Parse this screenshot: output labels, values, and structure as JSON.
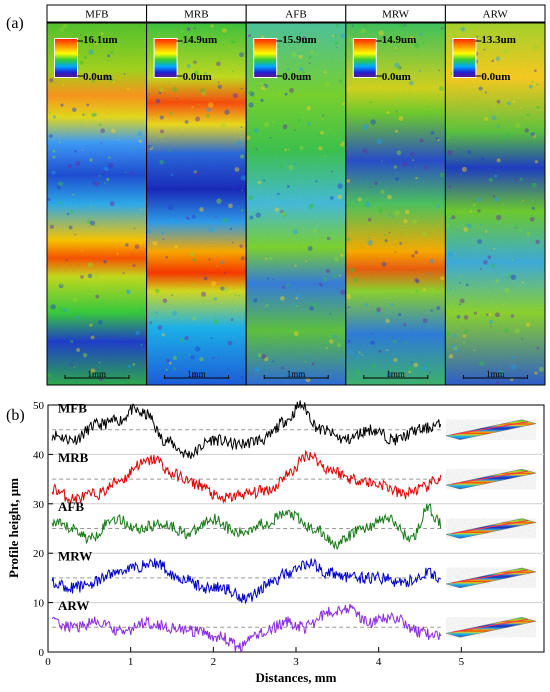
{
  "figure": {
    "label_a": "(a)",
    "label_b": "(b)"
  },
  "panels": [
    {
      "title": "MFB",
      "colorbar_max": "16.1um",
      "colorbar_min": "0.0um",
      "scale_bar": "1mm"
    },
    {
      "title": "MRB",
      "colorbar_max": "14.9um",
      "colorbar_min": "0.0um",
      "scale_bar": "1mm"
    },
    {
      "title": "AFB",
      "colorbar_max": "15.9um",
      "colorbar_min": "0.0um",
      "scale_bar": "1mm"
    },
    {
      "title": "MRW",
      "colorbar_max": "14.9um",
      "colorbar_min": "0.0um",
      "scale_bar": "1mm"
    },
    {
      "title": "ARW",
      "colorbar_max": "13.3um",
      "colorbar_min": "0.0um",
      "scale_bar": "1mm"
    }
  ],
  "chart_data": {
    "type": "line",
    "title": "",
    "xlabel": "Distances, mm",
    "ylabel": "Profile height, μm",
    "xlim": [
      0,
      6
    ],
    "ylim": [
      0,
      50
    ],
    "xticks": [
      "0",
      "1",
      "2",
      "3",
      "4",
      "5"
    ],
    "yticks": [
      "0",
      "10",
      "20",
      "30",
      "40",
      "50"
    ],
    "grid": "horizontal",
    "colors": {
      "MFB": "#000000",
      "MRB": "#e00000",
      "AFB": "#1a7a1a",
      "MRW": "#0000cc",
      "ARW": "#8a2be2",
      "reference": "#999999"
    },
    "series": [
      {
        "name": "MFB",
        "color": "#000000",
        "reference": 45,
        "x": [
          0.05,
          0.3,
          0.6,
          0.9,
          1.0,
          1.2,
          1.4,
          1.7,
          2.0,
          2.3,
          2.6,
          2.9,
          3.05,
          3.3,
          3.6,
          3.9,
          4.2,
          4.5,
          4.75
        ],
        "y": [
          44,
          43,
          46,
          47,
          49,
          48,
          43,
          40,
          43,
          42,
          43,
          47,
          50,
          45,
          43,
          45,
          43,
          45,
          46
        ]
      },
      {
        "name": "MRB",
        "color": "#e00000",
        "reference": 35,
        "x": [
          0.05,
          0.3,
          0.6,
          0.9,
          1.1,
          1.3,
          1.5,
          1.8,
          2.1,
          2.4,
          2.7,
          2.9,
          3.15,
          3.4,
          3.7,
          4.0,
          4.3,
          4.5,
          4.75
        ],
        "y": [
          33,
          31,
          32,
          35,
          38,
          39,
          36,
          34,
          31,
          32,
          33,
          36,
          40,
          37,
          35,
          34,
          32,
          33,
          35
        ]
      },
      {
        "name": "AFB",
        "color": "#1a7a1a",
        "reference": 25,
        "x": [
          0.05,
          0.3,
          0.5,
          0.8,
          1.1,
          1.4,
          1.7,
          2.0,
          2.3,
          2.6,
          2.9,
          3.2,
          3.5,
          3.8,
          4.1,
          4.4,
          4.6,
          4.75
        ],
        "y": [
          26,
          25,
          23,
          27,
          25,
          26,
          24,
          27,
          24,
          26,
          28,
          25,
          22,
          25,
          27,
          23,
          29,
          26
        ]
      },
      {
        "name": "MRW",
        "color": "#0000cc",
        "reference": 15,
        "x": [
          0.05,
          0.3,
          0.55,
          0.8,
          1.0,
          1.3,
          1.6,
          1.9,
          2.1,
          2.4,
          2.7,
          2.9,
          3.15,
          3.4,
          3.7,
          4.0,
          4.3,
          4.6,
          4.75
        ],
        "y": [
          14,
          13,
          14,
          16,
          17,
          18,
          15,
          13,
          13,
          11,
          14,
          16,
          18,
          16,
          15,
          15,
          14,
          16,
          15
        ]
      },
      {
        "name": "ARW",
        "color": "#8a2be2",
        "reference": 5,
        "x": [
          0.05,
          0.3,
          0.6,
          0.9,
          1.2,
          1.5,
          1.8,
          2.1,
          2.3,
          2.6,
          2.9,
          3.1,
          3.4,
          3.6,
          3.9,
          4.2,
          4.5,
          4.75
        ],
        "y": [
          6,
          5,
          6,
          4,
          6,
          5,
          4,
          3,
          1,
          4,
          6,
          5,
          8,
          9,
          6,
          7,
          4,
          3
        ]
      }
    ]
  }
}
